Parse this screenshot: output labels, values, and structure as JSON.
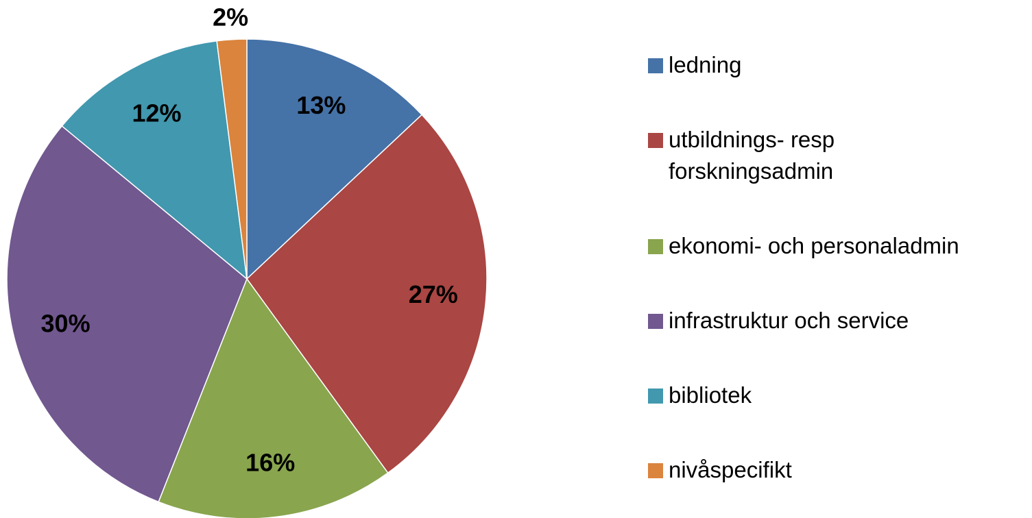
{
  "chart_data": {
    "type": "pie",
    "categories": [
      "ledning",
      "utbildnings- resp forskningsadmin",
      "ekonomi- och personaladmin",
      "infrastruktur och service",
      "bibliotek",
      "nivåspecifikt"
    ],
    "values": [
      13,
      27,
      16,
      30,
      12,
      2
    ],
    "value_labels": [
      "13%",
      "27%",
      "16%",
      "30%",
      "12%",
      "2%"
    ],
    "colors": [
      "#4572a7",
      "#aa4643",
      "#89a54e",
      "#71588f",
      "#4198af",
      "#db843d"
    ]
  }
}
